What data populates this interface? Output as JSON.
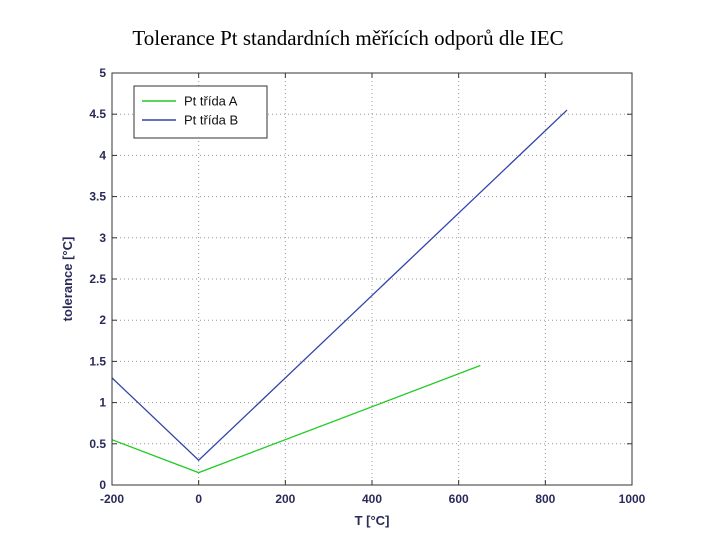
{
  "page": {
    "title": "Tolerance Pt standardních měřících odporů dle IEC"
  },
  "chart_data": {
    "type": "line",
    "title": "Tolerance Pt standardních měřících odporů dle IEC",
    "xlabel": "T [°C]",
    "ylabel": "tolerance [°C]",
    "xlim": [
      -200,
      1000
    ],
    "ylim": [
      0,
      5
    ],
    "xticks": [
      -200,
      0,
      200,
      400,
      600,
      800,
      1000
    ],
    "xtick_labels": [
      "-200",
      "0",
      "200",
      "400",
      "600",
      "800",
      "1000"
    ],
    "yticks": [
      0,
      0.5,
      1,
      1.5,
      2,
      2.5,
      3,
      3.5,
      4,
      4.5,
      5
    ],
    "ytick_labels": [
      "0",
      "0.5",
      "1",
      "1.5",
      "2",
      "2.5",
      "3",
      "3.5",
      "4",
      "4.5",
      "5"
    ],
    "grid": true,
    "legend_position": "top-left",
    "series": [
      {
        "name": "Pt třída A",
        "color": "#22cc22",
        "x": [
          -200,
          0,
          650
        ],
        "y": [
          0.55,
          0.15,
          1.45
        ]
      },
      {
        "name": "Pt třída B",
        "color": "#3344aa",
        "x": [
          -200,
          0,
          850
        ],
        "y": [
          1.3,
          0.3,
          4.55
        ]
      }
    ]
  }
}
